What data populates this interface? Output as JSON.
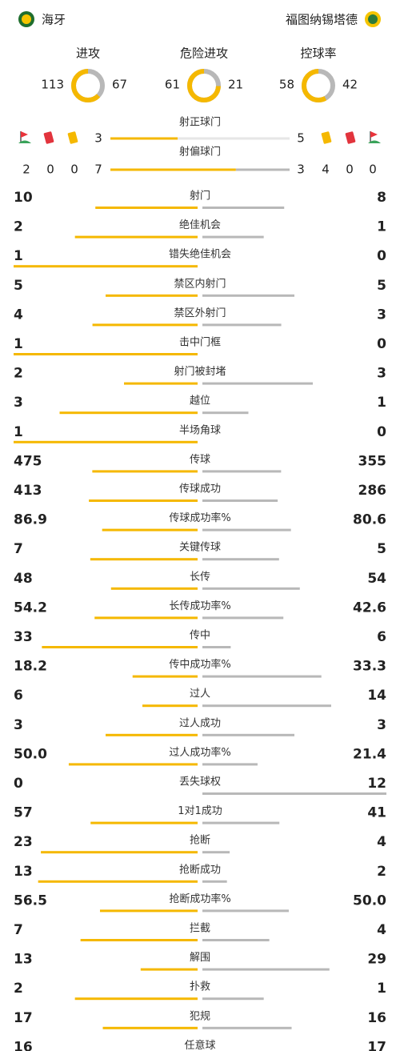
{
  "header": {
    "home_team": "海牙",
    "away_team": "福图纳锡塔德"
  },
  "summary": [
    {
      "label": "进攻",
      "home": 113,
      "away": 67
    },
    {
      "label": "危险进攻",
      "home": 61,
      "away": 21
    },
    {
      "label": "控球率",
      "home": 58,
      "away": 42
    }
  ],
  "shots": {
    "on_target_label": "射正球门",
    "on_target": {
      "home": 3,
      "away": 5
    },
    "off_target_label": "射偏球门",
    "off_target": {
      "home": 7,
      "away": 3
    },
    "home_corners": 2,
    "home_red": 0,
    "home_yellow": 0,
    "away_yellow": 4,
    "away_red": 0,
    "away_corners": 0
  },
  "stats": [
    {
      "label": "射门",
      "home": 10,
      "away": 8
    },
    {
      "label": "绝佳机会",
      "home": 2,
      "away": 1
    },
    {
      "label": "错失绝佳机会",
      "home": 1,
      "away": 0
    },
    {
      "label": "禁区内射门",
      "home": 5,
      "away": 5
    },
    {
      "label": "禁区外射门",
      "home": 4,
      "away": 3
    },
    {
      "label": "击中门框",
      "home": 1,
      "away": 0
    },
    {
      "label": "射门被封堵",
      "home": 2,
      "away": 3
    },
    {
      "label": "越位",
      "home": 3,
      "away": 1
    },
    {
      "label": "半场角球",
      "home": 1,
      "away": 0
    },
    {
      "label": "传球",
      "home": 475,
      "away": 355
    },
    {
      "label": "传球成功",
      "home": 413,
      "away": 286
    },
    {
      "label": "传球成功率%",
      "home": 86.9,
      "away": 80.6
    },
    {
      "label": "关键传球",
      "home": 7,
      "away": 5
    },
    {
      "label": "长传",
      "home": 48,
      "away": 54
    },
    {
      "label": "长传成功率%",
      "home": 54.2,
      "away": 42.6
    },
    {
      "label": "传中",
      "home": 33,
      "away": 6
    },
    {
      "label": "传中成功率%",
      "home": 18.2,
      "away": 33.3
    },
    {
      "label": "过人",
      "home": 6,
      "away": 14
    },
    {
      "label": "过人成功",
      "home": 3,
      "away": 3
    },
    {
      "label": "过人成功率%",
      "home": 50,
      "home_label": "50.0",
      "away": 21.4
    },
    {
      "label": "丢失球权",
      "home": 0,
      "away": 12
    },
    {
      "label": "1对1成功",
      "home": 57,
      "away": 41
    },
    {
      "label": "抢断",
      "home": 23,
      "away": 4
    },
    {
      "label": "抢断成功",
      "home": 13,
      "away": 2
    },
    {
      "label": "抢断成功率%",
      "home": 56.5,
      "away": 50,
      "away_label": "50.0"
    },
    {
      "label": "拦截",
      "home": 7,
      "away": 4
    },
    {
      "label": "解围",
      "home": 13,
      "away": 29
    },
    {
      "label": "扑救",
      "home": 2,
      "away": 1
    },
    {
      "label": "犯规",
      "home": 17,
      "away": 16
    },
    {
      "label": "任意球",
      "home": 16,
      "away": 17
    }
  ]
}
